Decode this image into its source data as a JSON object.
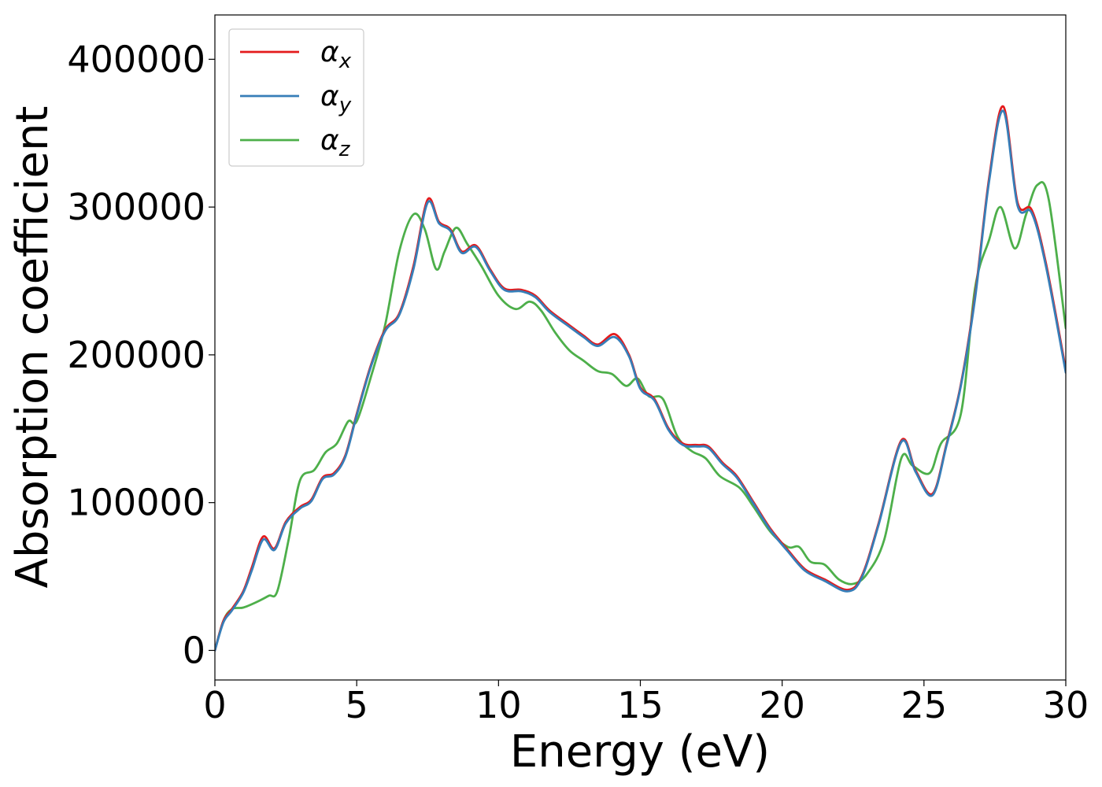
{
  "chart_data": {
    "type": "line",
    "title": "",
    "xlabel": "Energy (eV)",
    "ylabel": "Absorption coefficient",
    "xlim": [
      0,
      30
    ],
    "ylim": [
      -20000,
      430000
    ],
    "xticks": [
      0,
      5,
      10,
      15,
      20,
      25,
      30
    ],
    "xtick_labels": [
      "0",
      "5",
      "10",
      "15",
      "20",
      "25",
      "30"
    ],
    "yticks": [
      0,
      100000,
      200000,
      300000,
      400000
    ],
    "ytick_labels": [
      "0",
      "100000",
      "200000",
      "300000",
      "400000"
    ],
    "grid": false,
    "legend_position": "top-left",
    "series": [
      {
        "name": "α_x",
        "legend_base": "α",
        "legend_sub": "x",
        "color": "#e41a1c",
        "points": [
          [
            0,
            0
          ],
          [
            0.3,
            20000
          ],
          [
            0.6,
            28000
          ],
          [
            1.0,
            40000
          ],
          [
            1.3,
            56000
          ],
          [
            1.7,
            77000
          ],
          [
            2.1,
            69000
          ],
          [
            2.5,
            87000
          ],
          [
            3.0,
            97000
          ],
          [
            3.4,
            102000
          ],
          [
            3.8,
            117000
          ],
          [
            4.2,
            120000
          ],
          [
            4.6,
            132000
          ],
          [
            5.0,
            160000
          ],
          [
            5.5,
            193000
          ],
          [
            6.0,
            217000
          ],
          [
            6.5,
            228000
          ],
          [
            7.0,
            260000
          ],
          [
            7.5,
            305000
          ],
          [
            7.9,
            290000
          ],
          [
            8.3,
            285000
          ],
          [
            8.7,
            270000
          ],
          [
            9.2,
            274000
          ],
          [
            9.7,
            258000
          ],
          [
            10.2,
            245000
          ],
          [
            10.8,
            244000
          ],
          [
            11.3,
            240000
          ],
          [
            11.8,
            230000
          ],
          [
            12.5,
            220000
          ],
          [
            13.0,
            213000
          ],
          [
            13.5,
            207000
          ],
          [
            14.1,
            214000
          ],
          [
            14.6,
            200000
          ],
          [
            15.0,
            178000
          ],
          [
            15.5,
            170000
          ],
          [
            16.0,
            150000
          ],
          [
            16.5,
            140000
          ],
          [
            17.0,
            139000
          ],
          [
            17.4,
            138000
          ],
          [
            17.9,
            127000
          ],
          [
            18.4,
            118000
          ],
          [
            19.0,
            100000
          ],
          [
            19.6,
            82000
          ],
          [
            20.2,
            68000
          ],
          [
            20.8,
            55000
          ],
          [
            21.5,
            48000
          ],
          [
            22.3,
            41000
          ],
          [
            22.8,
            50000
          ],
          [
            23.4,
            86000
          ],
          [
            24.2,
            142000
          ],
          [
            24.7,
            122000
          ],
          [
            25.3,
            106000
          ],
          [
            25.8,
            140000
          ],
          [
            26.3,
            180000
          ],
          [
            26.8,
            240000
          ],
          [
            27.3,
            320000
          ],
          [
            27.8,
            368000
          ],
          [
            28.3,
            303000
          ],
          [
            28.8,
            298000
          ],
          [
            29.3,
            262000
          ],
          [
            30.0,
            190000
          ]
        ]
      },
      {
        "name": "α_y",
        "legend_base": "α",
        "legend_sub": "y",
        "color": "#377eb8",
        "points": [
          [
            0,
            0
          ],
          [
            0.3,
            19000
          ],
          [
            0.6,
            27000
          ],
          [
            1.0,
            39000
          ],
          [
            1.3,
            54000
          ],
          [
            1.7,
            75000
          ],
          [
            2.1,
            68000
          ],
          [
            2.5,
            86000
          ],
          [
            3.0,
            96000
          ],
          [
            3.4,
            101000
          ],
          [
            3.8,
            116000
          ],
          [
            4.2,
            119000
          ],
          [
            4.6,
            131000
          ],
          [
            5.0,
            159000
          ],
          [
            5.5,
            192000
          ],
          [
            6.0,
            216000
          ],
          [
            6.5,
            227000
          ],
          [
            7.0,
            258000
          ],
          [
            7.5,
            303000
          ],
          [
            7.9,
            289000
          ],
          [
            8.3,
            284000
          ],
          [
            8.7,
            269000
          ],
          [
            9.2,
            273000
          ],
          [
            9.7,
            257000
          ],
          [
            10.2,
            244000
          ],
          [
            10.8,
            243000
          ],
          [
            11.3,
            239000
          ],
          [
            11.8,
            229000
          ],
          [
            12.5,
            219000
          ],
          [
            13.0,
            212000
          ],
          [
            13.5,
            206000
          ],
          [
            14.1,
            212000
          ],
          [
            14.6,
            199000
          ],
          [
            15.0,
            177000
          ],
          [
            15.5,
            169000
          ],
          [
            16.0,
            149000
          ],
          [
            16.5,
            139000
          ],
          [
            17.0,
            138000
          ],
          [
            17.4,
            137000
          ],
          [
            17.9,
            126000
          ],
          [
            18.4,
            117000
          ],
          [
            19.0,
            99000
          ],
          [
            19.6,
            81000
          ],
          [
            20.2,
            67000
          ],
          [
            20.8,
            54000
          ],
          [
            21.5,
            47000
          ],
          [
            22.3,
            40000
          ],
          [
            22.8,
            49000
          ],
          [
            23.4,
            85000
          ],
          [
            24.2,
            141000
          ],
          [
            24.7,
            121000
          ],
          [
            25.3,
            105000
          ],
          [
            25.8,
            139000
          ],
          [
            26.3,
            179000
          ],
          [
            26.8,
            238000
          ],
          [
            27.3,
            318000
          ],
          [
            27.8,
            365000
          ],
          [
            28.3,
            301000
          ],
          [
            28.8,
            296000
          ],
          [
            29.3,
            260000
          ],
          [
            30.0,
            188000
          ]
        ]
      },
      {
        "name": "α_z",
        "legend_base": "α",
        "legend_sub": "z",
        "color": "#4daf4a",
        "points": [
          [
            0,
            0
          ],
          [
            0.3,
            20000
          ],
          [
            0.6,
            28000
          ],
          [
            1.0,
            29000
          ],
          [
            1.5,
            33000
          ],
          [
            1.9,
            37000
          ],
          [
            2.2,
            40000
          ],
          [
            2.6,
            75000
          ],
          [
            3.0,
            115000
          ],
          [
            3.5,
            122000
          ],
          [
            3.9,
            134000
          ],
          [
            4.3,
            140000
          ],
          [
            4.7,
            155000
          ],
          [
            5.0,
            155000
          ],
          [
            5.5,
            185000
          ],
          [
            6.0,
            220000
          ],
          [
            6.5,
            270000
          ],
          [
            7.0,
            295000
          ],
          [
            7.4,
            285000
          ],
          [
            7.8,
            258000
          ],
          [
            8.1,
            270000
          ],
          [
            8.5,
            286000
          ],
          [
            8.9,
            275000
          ],
          [
            9.4,
            260000
          ],
          [
            10.0,
            240000
          ],
          [
            10.6,
            231000
          ],
          [
            11.1,
            236000
          ],
          [
            11.5,
            230000
          ],
          [
            12.0,
            215000
          ],
          [
            12.5,
            203000
          ],
          [
            13.0,
            196000
          ],
          [
            13.5,
            189000
          ],
          [
            14.0,
            187000
          ],
          [
            14.5,
            179000
          ],
          [
            14.9,
            184000
          ],
          [
            15.3,
            172000
          ],
          [
            15.8,
            170000
          ],
          [
            16.3,
            145000
          ],
          [
            16.8,
            135000
          ],
          [
            17.3,
            130000
          ],
          [
            17.8,
            118000
          ],
          [
            18.5,
            110000
          ],
          [
            19.0,
            97000
          ],
          [
            19.6,
            80000
          ],
          [
            20.2,
            70000
          ],
          [
            20.6,
            70000
          ],
          [
            21.0,
            60000
          ],
          [
            21.5,
            58000
          ],
          [
            22.0,
            48000
          ],
          [
            22.5,
            45000
          ],
          [
            23.0,
            52000
          ],
          [
            23.6,
            75000
          ],
          [
            24.2,
            130000
          ],
          [
            24.6,
            125000
          ],
          [
            25.2,
            120000
          ],
          [
            25.6,
            140000
          ],
          [
            26.3,
            160000
          ],
          [
            26.8,
            245000
          ],
          [
            27.3,
            278000
          ],
          [
            27.7,
            300000
          ],
          [
            28.2,
            272000
          ],
          [
            28.6,
            295000
          ],
          [
            29.0,
            315000
          ],
          [
            29.4,
            305000
          ],
          [
            30.0,
            218000
          ]
        ]
      }
    ]
  }
}
